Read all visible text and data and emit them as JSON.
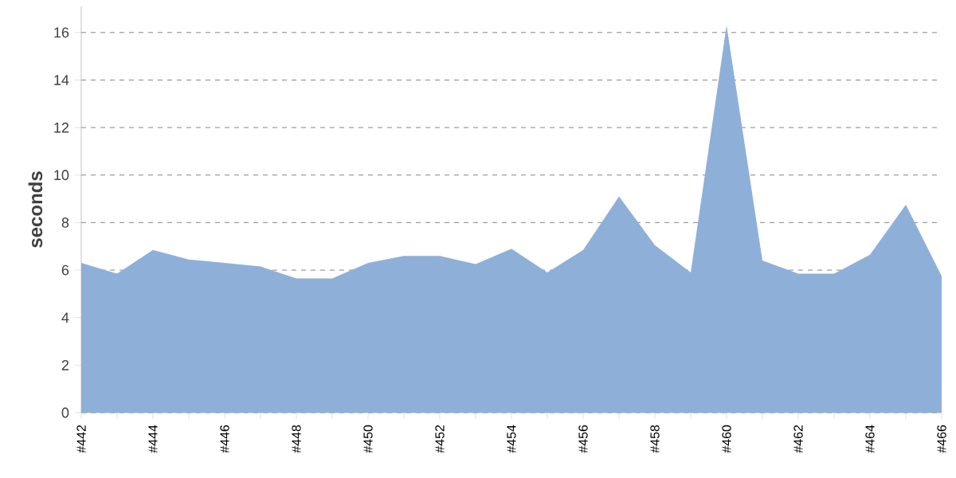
{
  "chart_data": {
    "type": "area",
    "ylabel": "seconds",
    "categories": [
      "#442",
      null,
      "#444",
      null,
      "#446",
      null,
      "#448",
      null,
      "#450",
      null,
      "#452",
      null,
      "#454",
      null,
      "#456",
      null,
      "#458",
      null,
      "#460",
      null,
      "#462",
      null,
      "#464",
      null,
      "#466"
    ],
    "values": [
      6.3,
      5.85,
      6.85,
      6.45,
      6.3,
      6.15,
      5.65,
      5.65,
      6.3,
      6.6,
      6.6,
      6.25,
      6.9,
      5.9,
      6.85,
      9.1,
      7.05,
      5.9,
      16.3,
      6.4,
      5.85,
      5.85,
      6.65,
      8.75,
      5.75
    ],
    "color": "#8eb0d8",
    "ylim": [
      0,
      17.1
    ],
    "yticks": [
      0,
      2,
      4,
      6,
      8,
      10,
      12,
      14,
      16
    ],
    "grid": "y"
  }
}
